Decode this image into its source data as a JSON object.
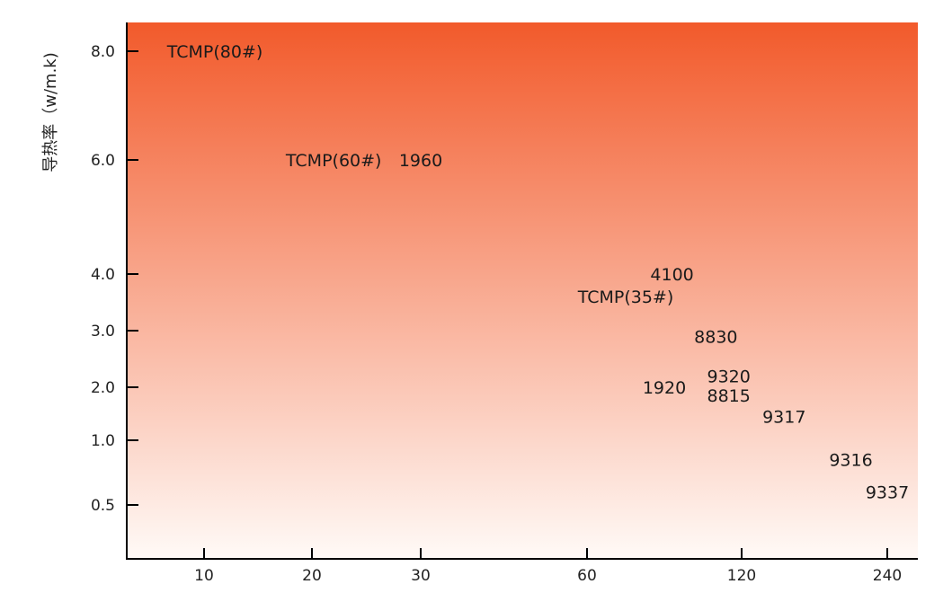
{
  "chart_data": {
    "type": "scatter",
    "title": "",
    "xlabel": "",
    "ylabel": "导热率（w/m.k)",
    "x_ticks": [
      {
        "label": "10",
        "value": 10
      },
      {
        "label": "20",
        "value": 20
      },
      {
        "label": "30",
        "value": 30
      },
      {
        "label": "60",
        "value": 60
      },
      {
        "label": "120",
        "value": 120
      },
      {
        "label": "240",
        "value": 240
      }
    ],
    "y_ticks": [
      {
        "label": "8.0",
        "value": 8.0
      },
      {
        "label": "6.0",
        "value": 6.0
      },
      {
        "label": "4.0",
        "value": 4.0
      },
      {
        "label": "3.0",
        "value": 3.0
      },
      {
        "label": "2.0",
        "value": 2.0
      },
      {
        "label": "1.0",
        "value": 1.0
      },
      {
        "label": "0.5",
        "value": 0.5
      }
    ],
    "points": [
      {
        "label": "TCMP(80#)",
        "x": 11,
        "y": 8.0
      },
      {
        "label": "TCMP(60#)",
        "x": 22,
        "y": 6.0
      },
      {
        "label": "1960",
        "x": 30,
        "y": 6.0
      },
      {
        "label": "4100",
        "x": 93,
        "y": 4.0
      },
      {
        "label": "TCMP(35#)",
        "x": 75,
        "y": 3.6
      },
      {
        "label": "8830",
        "x": 110,
        "y": 2.9
      },
      {
        "label": "9320",
        "x": 115,
        "y": 2.2
      },
      {
        "label": "1920",
        "x": 90,
        "y": 2.0
      },
      {
        "label": "8815",
        "x": 115,
        "y": 1.85
      },
      {
        "label": "9317",
        "x": 155,
        "y": 1.45
      },
      {
        "label": "9316",
        "x": 210,
        "y": 0.85
      },
      {
        "label": "9337",
        "x": 240,
        "y": 0.6
      }
    ],
    "background_gradient": {
      "top": "#f25a2b",
      "bottom": "#fffaf7"
    }
  }
}
